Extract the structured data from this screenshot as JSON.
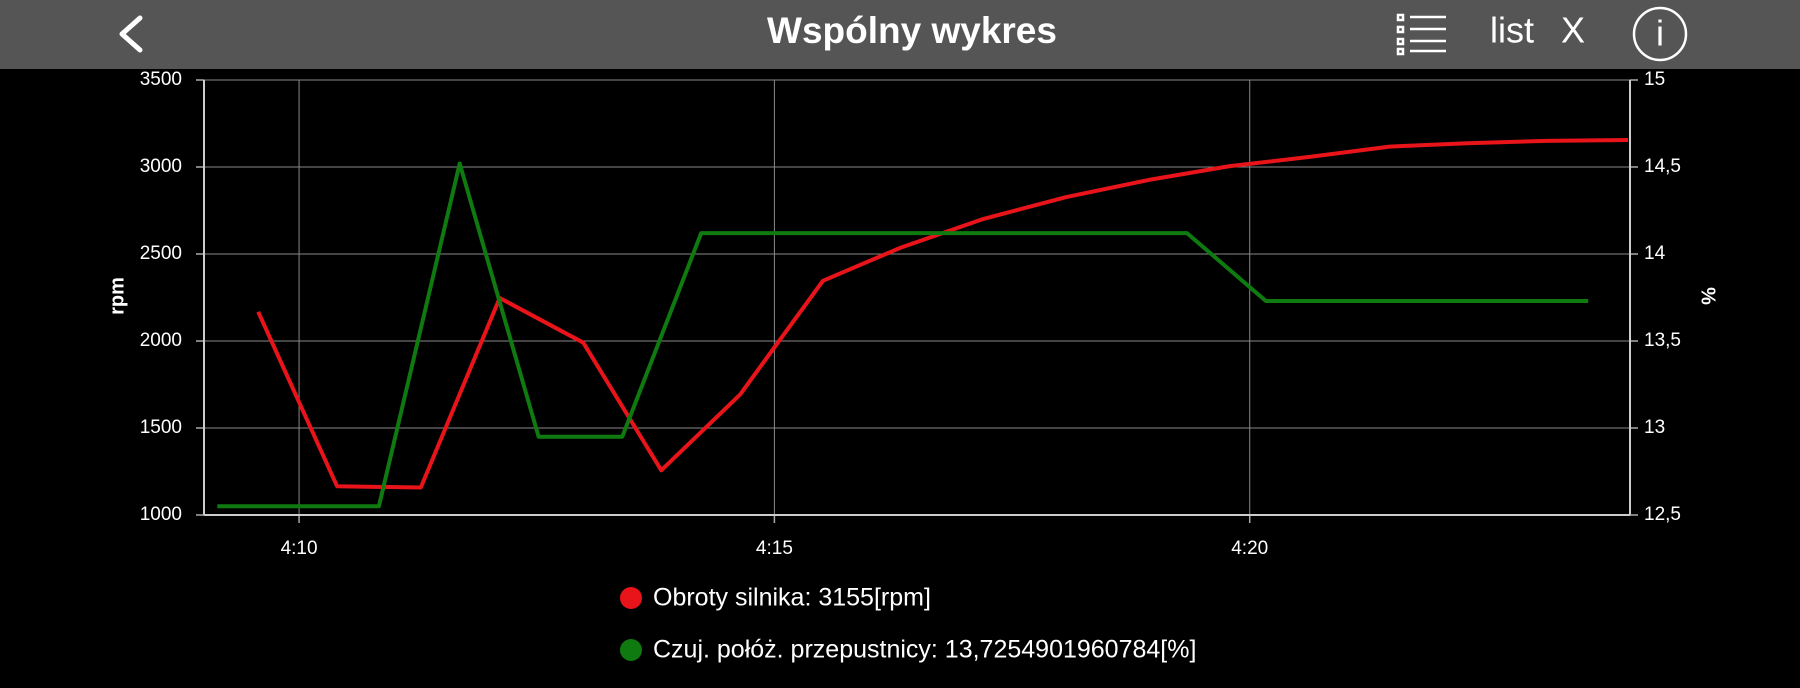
{
  "header": {
    "title": "Wspólny wykres",
    "list_label": "list",
    "close_label": "X",
    "info_label": "i"
  },
  "chart_data": {
    "type": "line",
    "y_label": "rpm",
    "y2_label": "%",
    "xlim": [
      249,
      264
    ],
    "xticks": [
      {
        "value": 250,
        "label": "4:10"
      },
      {
        "value": 255,
        "label": "4:15"
      },
      {
        "value": 260,
        "label": "4:20"
      }
    ],
    "ylim": [
      1000,
      3500
    ],
    "yticks": [
      1000,
      1500,
      2000,
      2500,
      3000,
      3500
    ],
    "y2lim": [
      12.5,
      15
    ],
    "y2ticks": [
      {
        "value": 12.5,
        "label": "12,5"
      },
      {
        "value": 13,
        "label": "13"
      },
      {
        "value": 13.5,
        "label": "13,5"
      },
      {
        "value": 14,
        "label": "14"
      },
      {
        "value": 14.5,
        "label": "14,5"
      },
      {
        "value": 15,
        "label": "15"
      }
    ],
    "grid": true,
    "series": [
      {
        "name": "Obroty silnika: 3155[rpm]",
        "color": "#e8141a",
        "x": [
          249.57,
          250.4,
          251.28,
          252.11,
          252.99,
          253.81,
          254.64,
          255.51,
          256.33,
          257.2,
          258.07,
          258.94,
          259.79,
          260.63,
          261.47,
          262.29,
          263.11,
          263.98
        ],
        "values": [
          2168,
          1165,
          1158,
          2247,
          1990,
          1257,
          1693,
          2346,
          2537,
          2702,
          2827,
          2926,
          3005,
          3058,
          3117,
          3137,
          3150,
          3155
        ]
      },
      {
        "name": "Czuj. połóż. przepustnicy: 13,7254901960784[%]",
        "color": "#0f7a10",
        "axis": "y2",
        "x": [
          249.14,
          250.84,
          251.69,
          252.52,
          253.4,
          254.23,
          259.34,
          260.17,
          263.56
        ],
        "values": [
          12.55,
          12.55,
          14.52,
          12.95,
          12.95,
          14.12,
          14.12,
          13.73,
          13.73
        ]
      }
    ]
  }
}
